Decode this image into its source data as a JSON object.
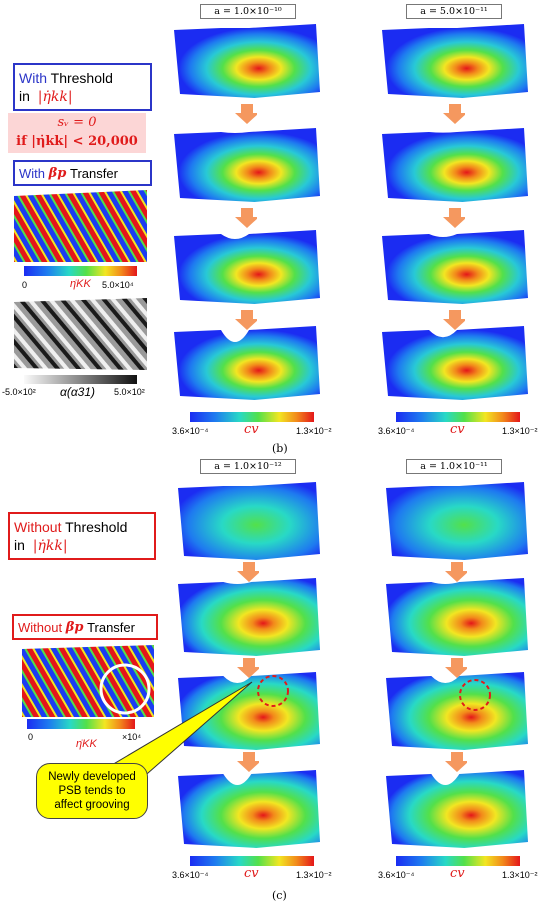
{
  "panel_b": {
    "box_with": {
      "word": "With",
      "rest": "Threshold",
      "line2": "in",
      "math": "|η̇kk|"
    },
    "condition": {
      "line1": "sᵥ = 0",
      "line2": "if |η̇kk| < 20,000"
    },
    "transfer_with": {
      "word": "With",
      "beta": "βp",
      "rest": "Transfer"
    },
    "eta_bar": {
      "min": "0",
      "label": "η̇KK",
      "max": "5.0×10⁴"
    },
    "alpha_bar": {
      "min": "-5.0×10²",
      "label": "α(α31)",
      "max": "5.0×10²"
    },
    "col1_label": "a = 1.0×10⁻¹⁰",
    "col2_label": "a = 5.0×10⁻¹¹",
    "cv_bar": {
      "min": "3.6×10⁻⁴",
      "label": "cv",
      "max": "1.3×10⁻²"
    },
    "letter": "(b)"
  },
  "panel_c": {
    "box_without": {
      "word": "Without",
      "rest": "Threshold",
      "line2": "in",
      "math": "|η̇kk|"
    },
    "transfer_without": {
      "word": "Without",
      "beta": "βp",
      "rest": "Transfer"
    },
    "eta_bar": {
      "min": "0",
      "label": "η̇KK",
      "max": "×10⁴"
    },
    "callout": "Newly developed PSB tends to affect grooving",
    "col1_label": "a = 1.0×10⁻¹²",
    "col2_label": "a = 1.0×10⁻¹¹",
    "cv_bar": {
      "min": "3.6×10⁻⁴",
      "label": "cv",
      "max": "1.3×10⁻²"
    },
    "letter": "(c)"
  },
  "colors": {
    "blue_frame": "#2b35c8",
    "red_frame": "#e01b1b",
    "arrow": "#f5985f",
    "callout_fill": "#ffff00"
  }
}
